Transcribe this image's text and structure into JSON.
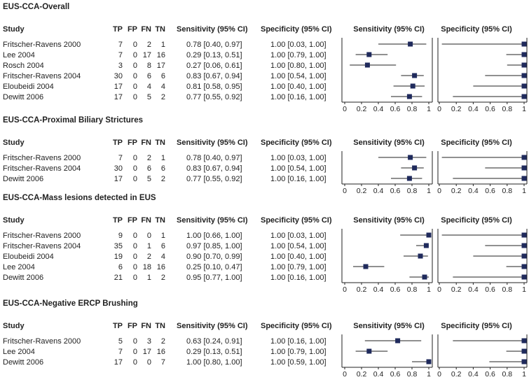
{
  "columns": [
    "Study",
    "TP",
    "FP",
    "FN",
    "TN",
    "Sensitivity (95% CI)",
    "Specificity (95% CI)",
    "Sensitivity (95% CI)",
    "Specificity (95% CI)"
  ],
  "axis_ticks": [
    "0",
    "0.2",
    "0.4",
    "0.6",
    "0.8",
    "1"
  ],
  "marker_color": "#1f2a5c",
  "chart_data": [
    {
      "type": "forest",
      "title": "EUS-CCA-Overall",
      "xlim": [
        0,
        1
      ],
      "rows": [
        {
          "study": "Fritscher-Ravens 2000",
          "tp": 7,
          "fp": 0,
          "fn": 2,
          "tn": 1,
          "sens": 0.78,
          "sens_lo": 0.4,
          "sens_hi": 0.97,
          "sens_text": "0.78 [0.40, 0.97]",
          "spec": 1.0,
          "spec_lo": 0.03,
          "spec_hi": 1.0,
          "spec_text": "1.00 [0.03, 1.00]"
        },
        {
          "study": "Lee 2004",
          "tp": 7,
          "fp": 0,
          "fn": 17,
          "tn": 16,
          "sens": 0.29,
          "sens_lo": 0.13,
          "sens_hi": 0.51,
          "sens_text": "0.29 [0.13, 0.51]",
          "spec": 1.0,
          "spec_lo": 0.79,
          "spec_hi": 1.0,
          "spec_text": "1.00 [0.79, 1.00]"
        },
        {
          "study": "Rosch 2004",
          "tp": 3,
          "fp": 0,
          "fn": 8,
          "tn": 17,
          "sens": 0.27,
          "sens_lo": 0.06,
          "sens_hi": 0.61,
          "sens_text": "0.27 [0.06, 0.61]",
          "spec": 1.0,
          "spec_lo": 0.8,
          "spec_hi": 1.0,
          "spec_text": "1.00 [0.80, 1.00]"
        },
        {
          "study": "Fritscher-Ravens 2004",
          "tp": 30,
          "fp": 0,
          "fn": 6,
          "tn": 6,
          "sens": 0.83,
          "sens_lo": 0.67,
          "sens_hi": 0.94,
          "sens_text": "0.83 [0.67, 0.94]",
          "spec": 1.0,
          "spec_lo": 0.54,
          "spec_hi": 1.0,
          "spec_text": "1.00 [0.54, 1.00]"
        },
        {
          "study": "Eloubeidi 2004",
          "tp": 17,
          "fp": 0,
          "fn": 4,
          "tn": 4,
          "sens": 0.81,
          "sens_lo": 0.58,
          "sens_hi": 0.95,
          "sens_text": "0.81 [0.58, 0.95]",
          "spec": 1.0,
          "spec_lo": 0.4,
          "spec_hi": 1.0,
          "spec_text": "1.00 [0.40, 1.00]"
        },
        {
          "study": "Dewitt 2006",
          "tp": 17,
          "fp": 0,
          "fn": 5,
          "tn": 2,
          "sens": 0.77,
          "sens_lo": 0.55,
          "sens_hi": 0.92,
          "sens_text": "0.77 [0.55, 0.92]",
          "spec": 1.0,
          "spec_lo": 0.16,
          "spec_hi": 1.0,
          "spec_text": "1.00 [0.16, 1.00]"
        }
      ]
    },
    {
      "type": "forest",
      "title": "EUS-CCA-Proximal Biliary Strictures",
      "xlim": [
        0,
        1
      ],
      "rows": [
        {
          "study": "Fritscher-Ravens 2000",
          "tp": 7,
          "fp": 0,
          "fn": 2,
          "tn": 1,
          "sens": 0.78,
          "sens_lo": 0.4,
          "sens_hi": 0.97,
          "sens_text": "0.78 [0.40, 0.97]",
          "spec": 1.0,
          "spec_lo": 0.03,
          "spec_hi": 1.0,
          "spec_text": "1.00 [0.03, 1.00]"
        },
        {
          "study": "Fritscher-Ravens 2004",
          "tp": 30,
          "fp": 0,
          "fn": 6,
          "tn": 6,
          "sens": 0.83,
          "sens_lo": 0.67,
          "sens_hi": 0.94,
          "sens_text": "0.83 [0.67, 0.94]",
          "spec": 1.0,
          "spec_lo": 0.54,
          "spec_hi": 1.0,
          "spec_text": "1.00 [0.54, 1.00]"
        },
        {
          "study": "Dewitt 2006",
          "tp": 17,
          "fp": 0,
          "fn": 5,
          "tn": 2,
          "sens": 0.77,
          "sens_lo": 0.55,
          "sens_hi": 0.92,
          "sens_text": "0.77 [0.55, 0.92]",
          "spec": 1.0,
          "spec_lo": 0.16,
          "spec_hi": 1.0,
          "spec_text": "1.00 [0.16, 1.00]"
        }
      ]
    },
    {
      "type": "forest",
      "title": "EUS-CCA-Mass lesions detected in EUS",
      "xlim": [
        0,
        1
      ],
      "rows": [
        {
          "study": "Fritscher-Ravens 2000",
          "tp": 9,
          "fp": 0,
          "fn": 0,
          "tn": 1,
          "sens": 1.0,
          "sens_lo": 0.66,
          "sens_hi": 1.0,
          "sens_text": "1.00 [0.66, 1.00]",
          "spec": 1.0,
          "spec_lo": 0.03,
          "spec_hi": 1.0,
          "spec_text": "1.00 [0.03, 1.00]"
        },
        {
          "study": "Fritscher-Ravens 2004",
          "tp": 35,
          "fp": 0,
          "fn": 1,
          "tn": 6,
          "sens": 0.97,
          "sens_lo": 0.85,
          "sens_hi": 1.0,
          "sens_text": "0.97 [0.85, 1.00]",
          "spec": 1.0,
          "spec_lo": 0.54,
          "spec_hi": 1.0,
          "spec_text": "1.00 [0.54, 1.00]"
        },
        {
          "study": "Eloubeidi 2004",
          "tp": 19,
          "fp": 0,
          "fn": 2,
          "tn": 4,
          "sens": 0.9,
          "sens_lo": 0.7,
          "sens_hi": 0.99,
          "sens_text": "0.90 [0.70, 0.99]",
          "spec": 1.0,
          "spec_lo": 0.4,
          "spec_hi": 1.0,
          "spec_text": "1.00 [0.40, 1.00]"
        },
        {
          "study": "Lee 2004",
          "tp": 6,
          "fp": 0,
          "fn": 18,
          "tn": 16,
          "sens": 0.25,
          "sens_lo": 0.1,
          "sens_hi": 0.47,
          "sens_text": "0.25 [0.10, 0.47]",
          "spec": 1.0,
          "spec_lo": 0.79,
          "spec_hi": 1.0,
          "spec_text": "1.00 [0.79, 1.00]"
        },
        {
          "study": "Dewitt 2006",
          "tp": 21,
          "fp": 0,
          "fn": 1,
          "tn": 2,
          "sens": 0.95,
          "sens_lo": 0.77,
          "sens_hi": 1.0,
          "sens_text": "0.95 [0.77, 1.00]",
          "spec": 1.0,
          "spec_lo": 0.16,
          "spec_hi": 1.0,
          "spec_text": "1.00 [0.16, 1.00]"
        }
      ]
    },
    {
      "type": "forest",
      "title": "EUS-CCA-Negative ERCP Brushing",
      "xlim": [
        0,
        1
      ],
      "rows": [
        {
          "study": "Fritscher-Ravens 2000",
          "tp": 5,
          "fp": 0,
          "fn": 3,
          "tn": 2,
          "sens": 0.63,
          "sens_lo": 0.24,
          "sens_hi": 0.91,
          "sens_text": "0.63 [0.24, 0.91]",
          "spec": 1.0,
          "spec_lo": 0.16,
          "spec_hi": 1.0,
          "spec_text": "1.00 [0.16, 1.00]"
        },
        {
          "study": "Lee 2004",
          "tp": 7,
          "fp": 0,
          "fn": 17,
          "tn": 16,
          "sens": 0.29,
          "sens_lo": 0.13,
          "sens_hi": 0.51,
          "sens_text": "0.29 [0.13, 0.51]",
          "spec": 1.0,
          "spec_lo": 0.79,
          "spec_hi": 1.0,
          "spec_text": "1.00 [0.79, 1.00]"
        },
        {
          "study": "Dewitt 2006",
          "tp": 17,
          "fp": 0,
          "fn": 0,
          "tn": 7,
          "sens": 1.0,
          "sens_lo": 0.8,
          "sens_hi": 1.0,
          "sens_text": "1.00 [0.80, 1.00]",
          "spec": 1.0,
          "spec_lo": 0.59,
          "spec_hi": 1.0,
          "spec_text": "1.00 [0.59, 1.00]"
        }
      ]
    }
  ]
}
